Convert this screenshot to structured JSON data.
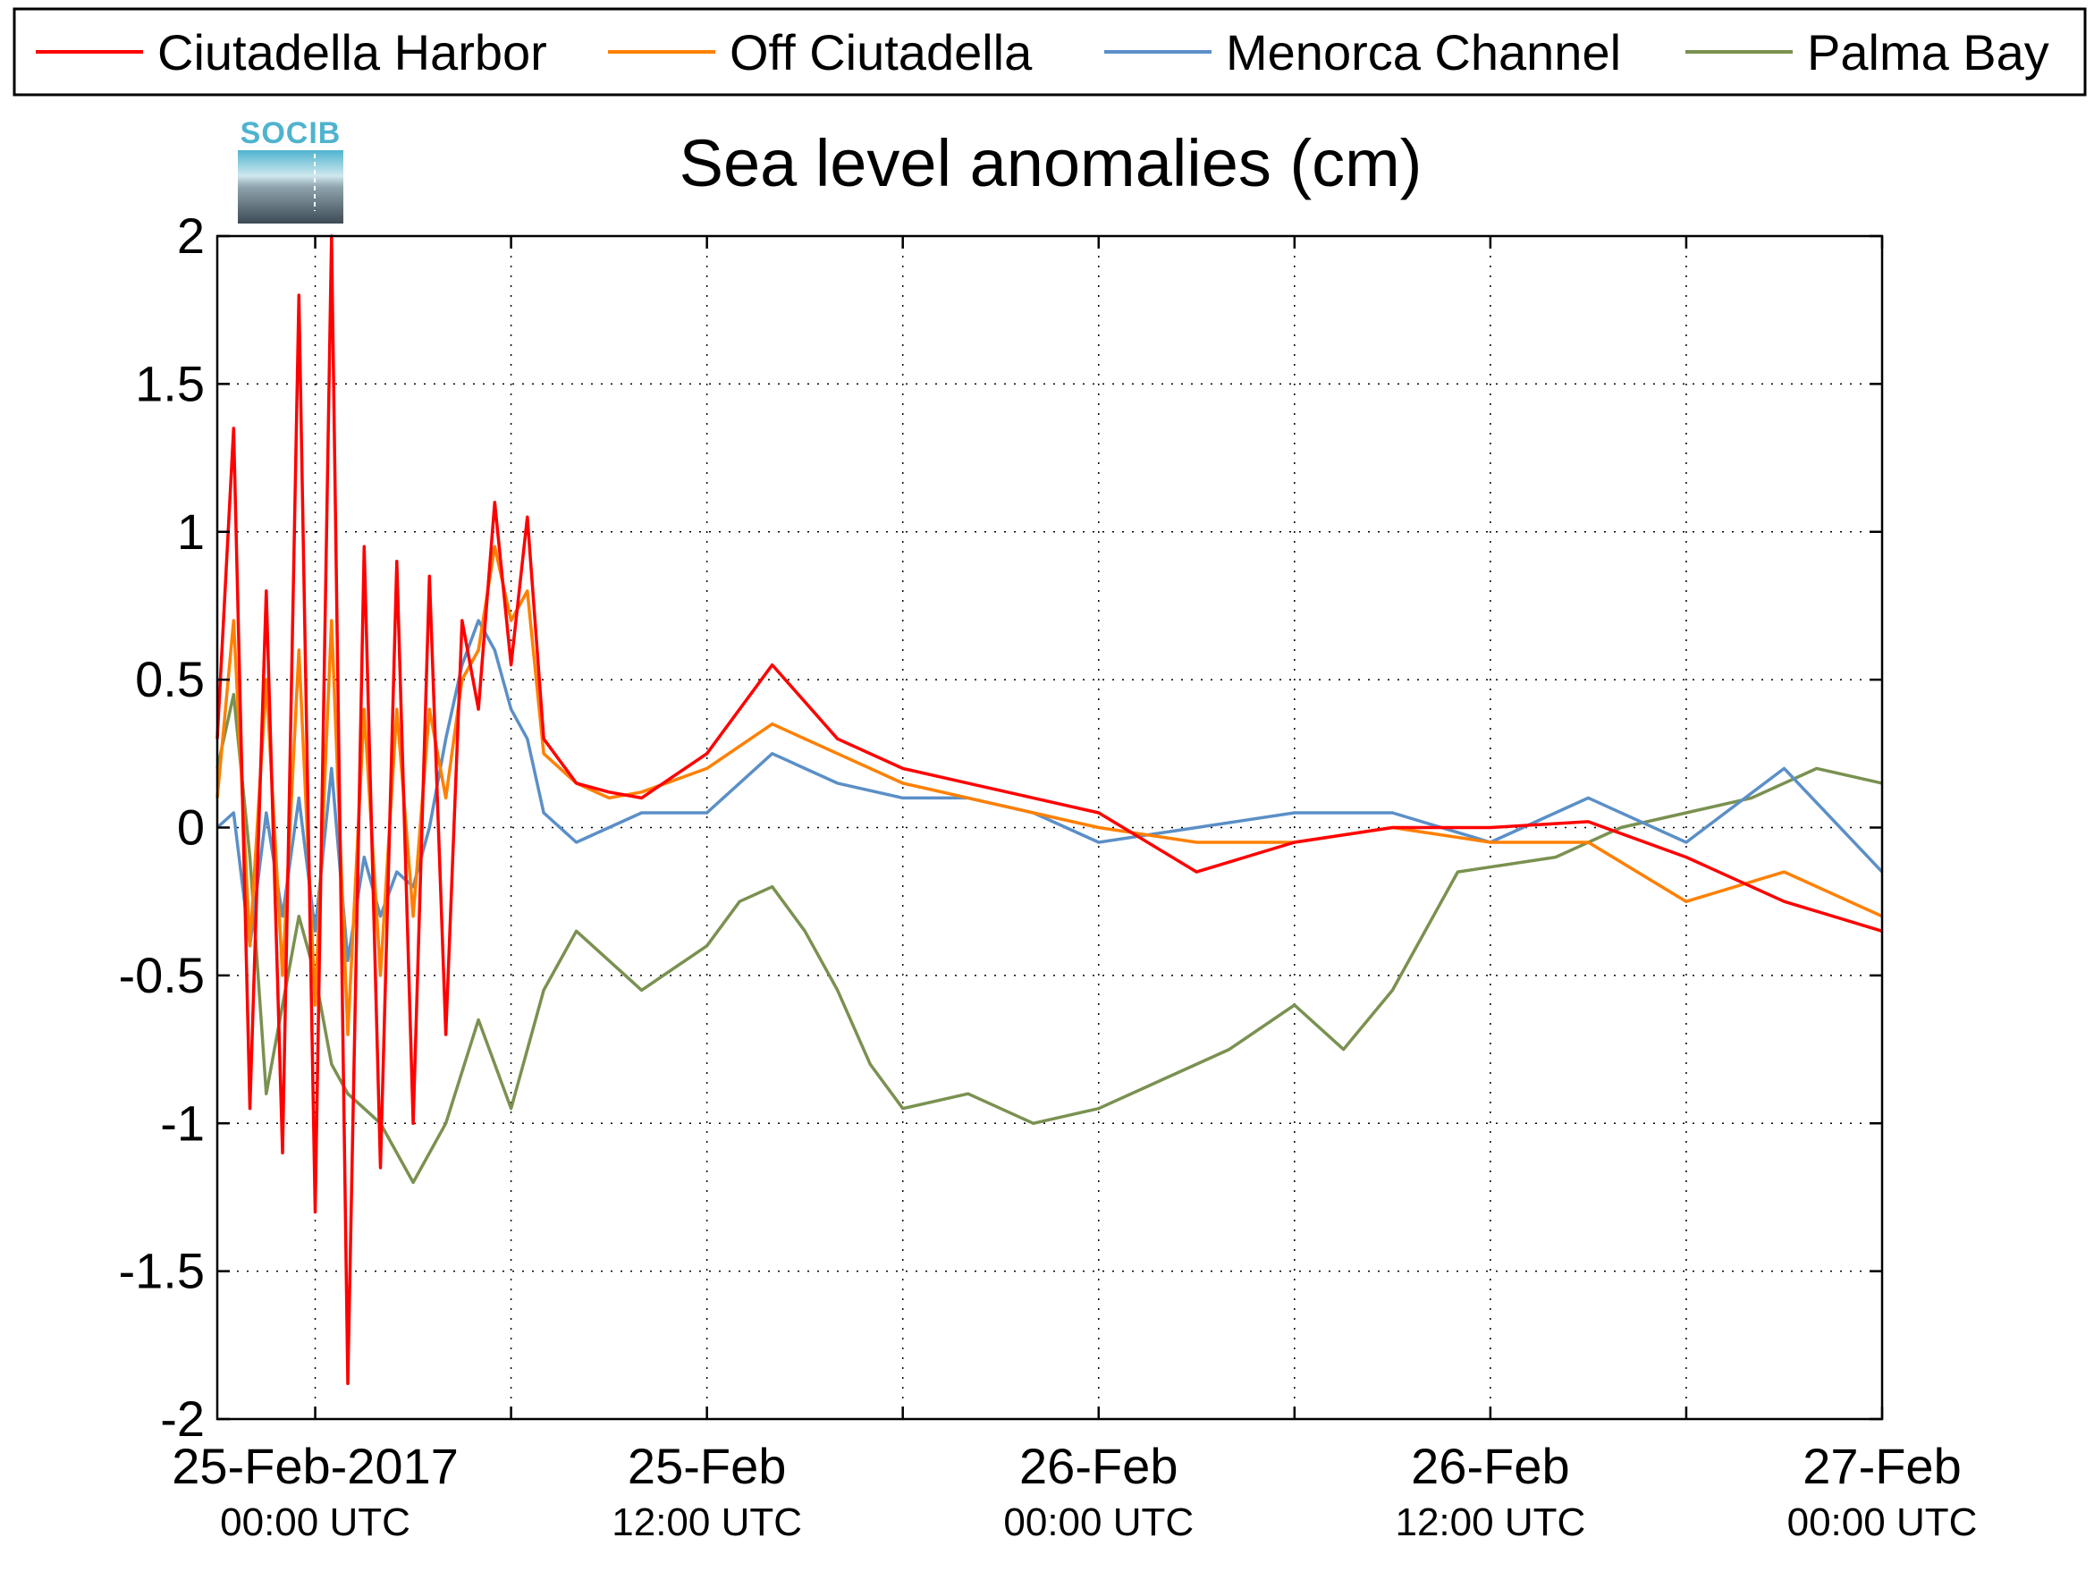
{
  "chart_data": {
    "type": "line",
    "title": "Sea level anomalies (cm)",
    "xlabel": "",
    "ylabel": "",
    "ylim": [
      -2,
      2
    ],
    "xlim": [
      "2017-02-25 00:00 UTC",
      "2017-02-27 00:00 UTC"
    ],
    "grid": true,
    "legend_position": "top",
    "logo": "SOCIB",
    "y_ticks": [
      "-2",
      "-1.5",
      "-1",
      "-0.5",
      "0",
      "0.5",
      "1",
      "1.5",
      "2"
    ],
    "x_ticks": [
      {
        "main": "25-Feb-2017",
        "sub": "00:00 UTC"
      },
      {
        "main": "25-Feb",
        "sub": "12:00 UTC"
      },
      {
        "main": "26-Feb",
        "sub": "00:00 UTC"
      },
      {
        "main": "26-Feb",
        "sub": "12:00 UTC"
      },
      {
        "main": "27-Feb",
        "sub": "00:00 UTC"
      }
    ],
    "x_unit": "hours since 2017-02-25 00:00 UTC",
    "series": [
      {
        "name": "Ciutadella Harbor",
        "color": "#ff0000",
        "x": [
          -3.0,
          -2.5,
          -2.0,
          -1.5,
          -1.0,
          -0.5,
          0.0,
          0.5,
          1.0,
          1.5,
          2.0,
          2.5,
          3.0,
          3.5,
          4.0,
          4.5,
          5.0,
          5.5,
          6.0,
          6.5,
          7.0,
          8.0,
          9.0,
          10.0,
          12.0,
          14.0,
          16.0,
          18.0,
          20.0,
          22.0,
          24.0,
          27.0,
          30.0,
          33.0,
          36.0,
          39.0,
          42.0,
          45.0,
          48.0
        ],
        "y": [
          0.3,
          1.35,
          -0.95,
          0.8,
          -1.1,
          1.8,
          -1.3,
          2.0,
          -1.88,
          0.95,
          -1.15,
          0.9,
          -1.0,
          0.85,
          -0.7,
          0.7,
          0.4,
          1.1,
          0.55,
          1.05,
          0.3,
          0.15,
          0.12,
          0.1,
          0.25,
          0.55,
          0.3,
          0.2,
          0.15,
          0.1,
          0.05,
          -0.15,
          -0.05,
          0.0,
          0.0,
          0.02,
          -0.1,
          -0.25,
          -0.35
        ]
      },
      {
        "name": "Off Ciutadella",
        "color": "#ff8000",
        "x": [
          -3.0,
          -2.5,
          -2.0,
          -1.5,
          -1.0,
          -0.5,
          0.0,
          0.5,
          1.0,
          1.5,
          2.0,
          2.5,
          3.0,
          3.5,
          4.0,
          4.5,
          5.0,
          5.5,
          6.0,
          6.5,
          7.0,
          8.0,
          9.0,
          10.0,
          12.0,
          14.0,
          16.0,
          18.0,
          20.0,
          22.0,
          24.0,
          27.0,
          30.0,
          33.0,
          36.0,
          39.0,
          42.0,
          45.0,
          48.0
        ],
        "y": [
          0.1,
          0.7,
          -0.4,
          0.5,
          -0.5,
          0.6,
          -0.6,
          0.7,
          -0.7,
          0.4,
          -0.5,
          0.4,
          -0.3,
          0.4,
          0.1,
          0.5,
          0.6,
          0.95,
          0.7,
          0.8,
          0.25,
          0.15,
          0.1,
          0.12,
          0.2,
          0.35,
          0.25,
          0.15,
          0.1,
          0.05,
          0.0,
          -0.05,
          -0.05,
          0.0,
          -0.05,
          -0.05,
          -0.25,
          -0.15,
          -0.3
        ]
      },
      {
        "name": "Menorca Channel",
        "color": "#5b8fc7",
        "x": [
          -3.0,
          -2.5,
          -2.0,
          -1.5,
          -1.0,
          -0.5,
          0.0,
          0.5,
          1.0,
          1.5,
          2.0,
          2.5,
          3.0,
          3.5,
          4.0,
          4.5,
          5.0,
          5.5,
          6.0,
          6.5,
          7.0,
          8.0,
          9.0,
          10.0,
          12.0,
          14.0,
          16.0,
          18.0,
          20.0,
          22.0,
          24.0,
          27.0,
          30.0,
          33.0,
          36.0,
          39.0,
          42.0,
          45.0,
          48.0
        ],
        "y": [
          0.0,
          0.05,
          -0.4,
          0.05,
          -0.3,
          0.1,
          -0.35,
          0.2,
          -0.45,
          -0.1,
          -0.3,
          -0.15,
          -0.2,
          0.0,
          0.3,
          0.55,
          0.7,
          0.6,
          0.4,
          0.3,
          0.05,
          -0.05,
          0.0,
          0.05,
          0.05,
          0.25,
          0.15,
          0.1,
          0.1,
          0.05,
          -0.05,
          0.0,
          0.05,
          0.05,
          -0.05,
          0.1,
          -0.05,
          0.2,
          -0.15
        ]
      },
      {
        "name": "Palma Bay",
        "color": "#7a9150",
        "x": [
          -3.0,
          -2.5,
          -2.0,
          -1.5,
          -1.0,
          -0.5,
          0.0,
          0.5,
          1.0,
          1.5,
          2.0,
          3.0,
          4.0,
          5.0,
          6.0,
          7.0,
          8.0,
          9.0,
          10.0,
          12.0,
          13.0,
          14.0,
          15.0,
          16.0,
          17.0,
          18.0,
          20.0,
          22.0,
          24.0,
          26.0,
          28.0,
          30.0,
          31.5,
          33.0,
          35.0,
          38.0,
          40.0,
          42.0,
          44.0,
          46.0,
          48.0
        ],
        "y": [
          0.2,
          0.45,
          -0.1,
          -0.9,
          -0.6,
          -0.3,
          -0.5,
          -0.8,
          -0.9,
          -0.95,
          -1.0,
          -1.2,
          -1.0,
          -0.65,
          -0.95,
          -0.55,
          -0.35,
          -0.45,
          -0.55,
          -0.4,
          -0.25,
          -0.2,
          -0.35,
          -0.55,
          -0.8,
          -0.95,
          -0.9,
          -1.0,
          -0.95,
          -0.85,
          -0.75,
          -0.6,
          -0.75,
          -0.55,
          -0.15,
          -0.1,
          0.0,
          0.05,
          0.1,
          0.2,
          0.15
        ]
      }
    ]
  }
}
